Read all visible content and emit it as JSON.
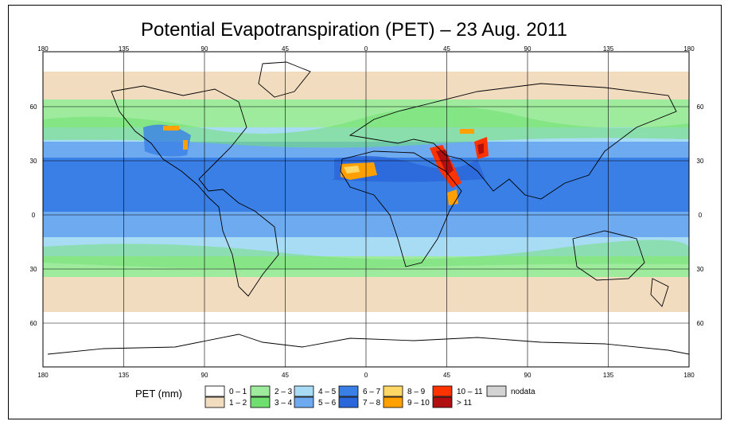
{
  "title": "Potential Evapotranspiration (PET) – 23 Aug. 2011",
  "axes": {
    "top_lon_labels": [
      "180",
      "135",
      "90",
      "45",
      "0",
      "45",
      "90",
      "135",
      "180"
    ],
    "bottom_lon_labels": [
      "180",
      "135",
      "90",
      "45",
      "0",
      "45",
      "90",
      "135",
      "180"
    ],
    "lat_labels": [
      "60",
      "30",
      "0",
      "30",
      "60"
    ]
  },
  "legend": {
    "unit_label": "PET (mm)",
    "classes": [
      {
        "label": "0 – 1",
        "color": "#ffffff"
      },
      {
        "label": "1 – 2",
        "color": "#f2dcc0"
      },
      {
        "label": "2 – 3",
        "color": "#9eeb9e"
      },
      {
        "label": "3 – 4",
        "color": "#6fe06f"
      },
      {
        "label": "4 – 5",
        "color": "#a8dcf4"
      },
      {
        "label": "5 – 6",
        "color": "#6eaaf0"
      },
      {
        "label": "6 – 7",
        "color": "#3a7fe6"
      },
      {
        "label": "7 – 8",
        "color": "#2b66db"
      },
      {
        "label": "8 – 9",
        "color": "#ffd766"
      },
      {
        "label": "9 – 10",
        "color": "#ff9f00"
      },
      {
        "label": "10 – 11",
        "color": "#ff3300"
      },
      {
        "label": "> 11",
        "color": "#b01010"
      },
      {
        "label": "nodata",
        "color": "#d3d3d3"
      }
    ]
  }
}
